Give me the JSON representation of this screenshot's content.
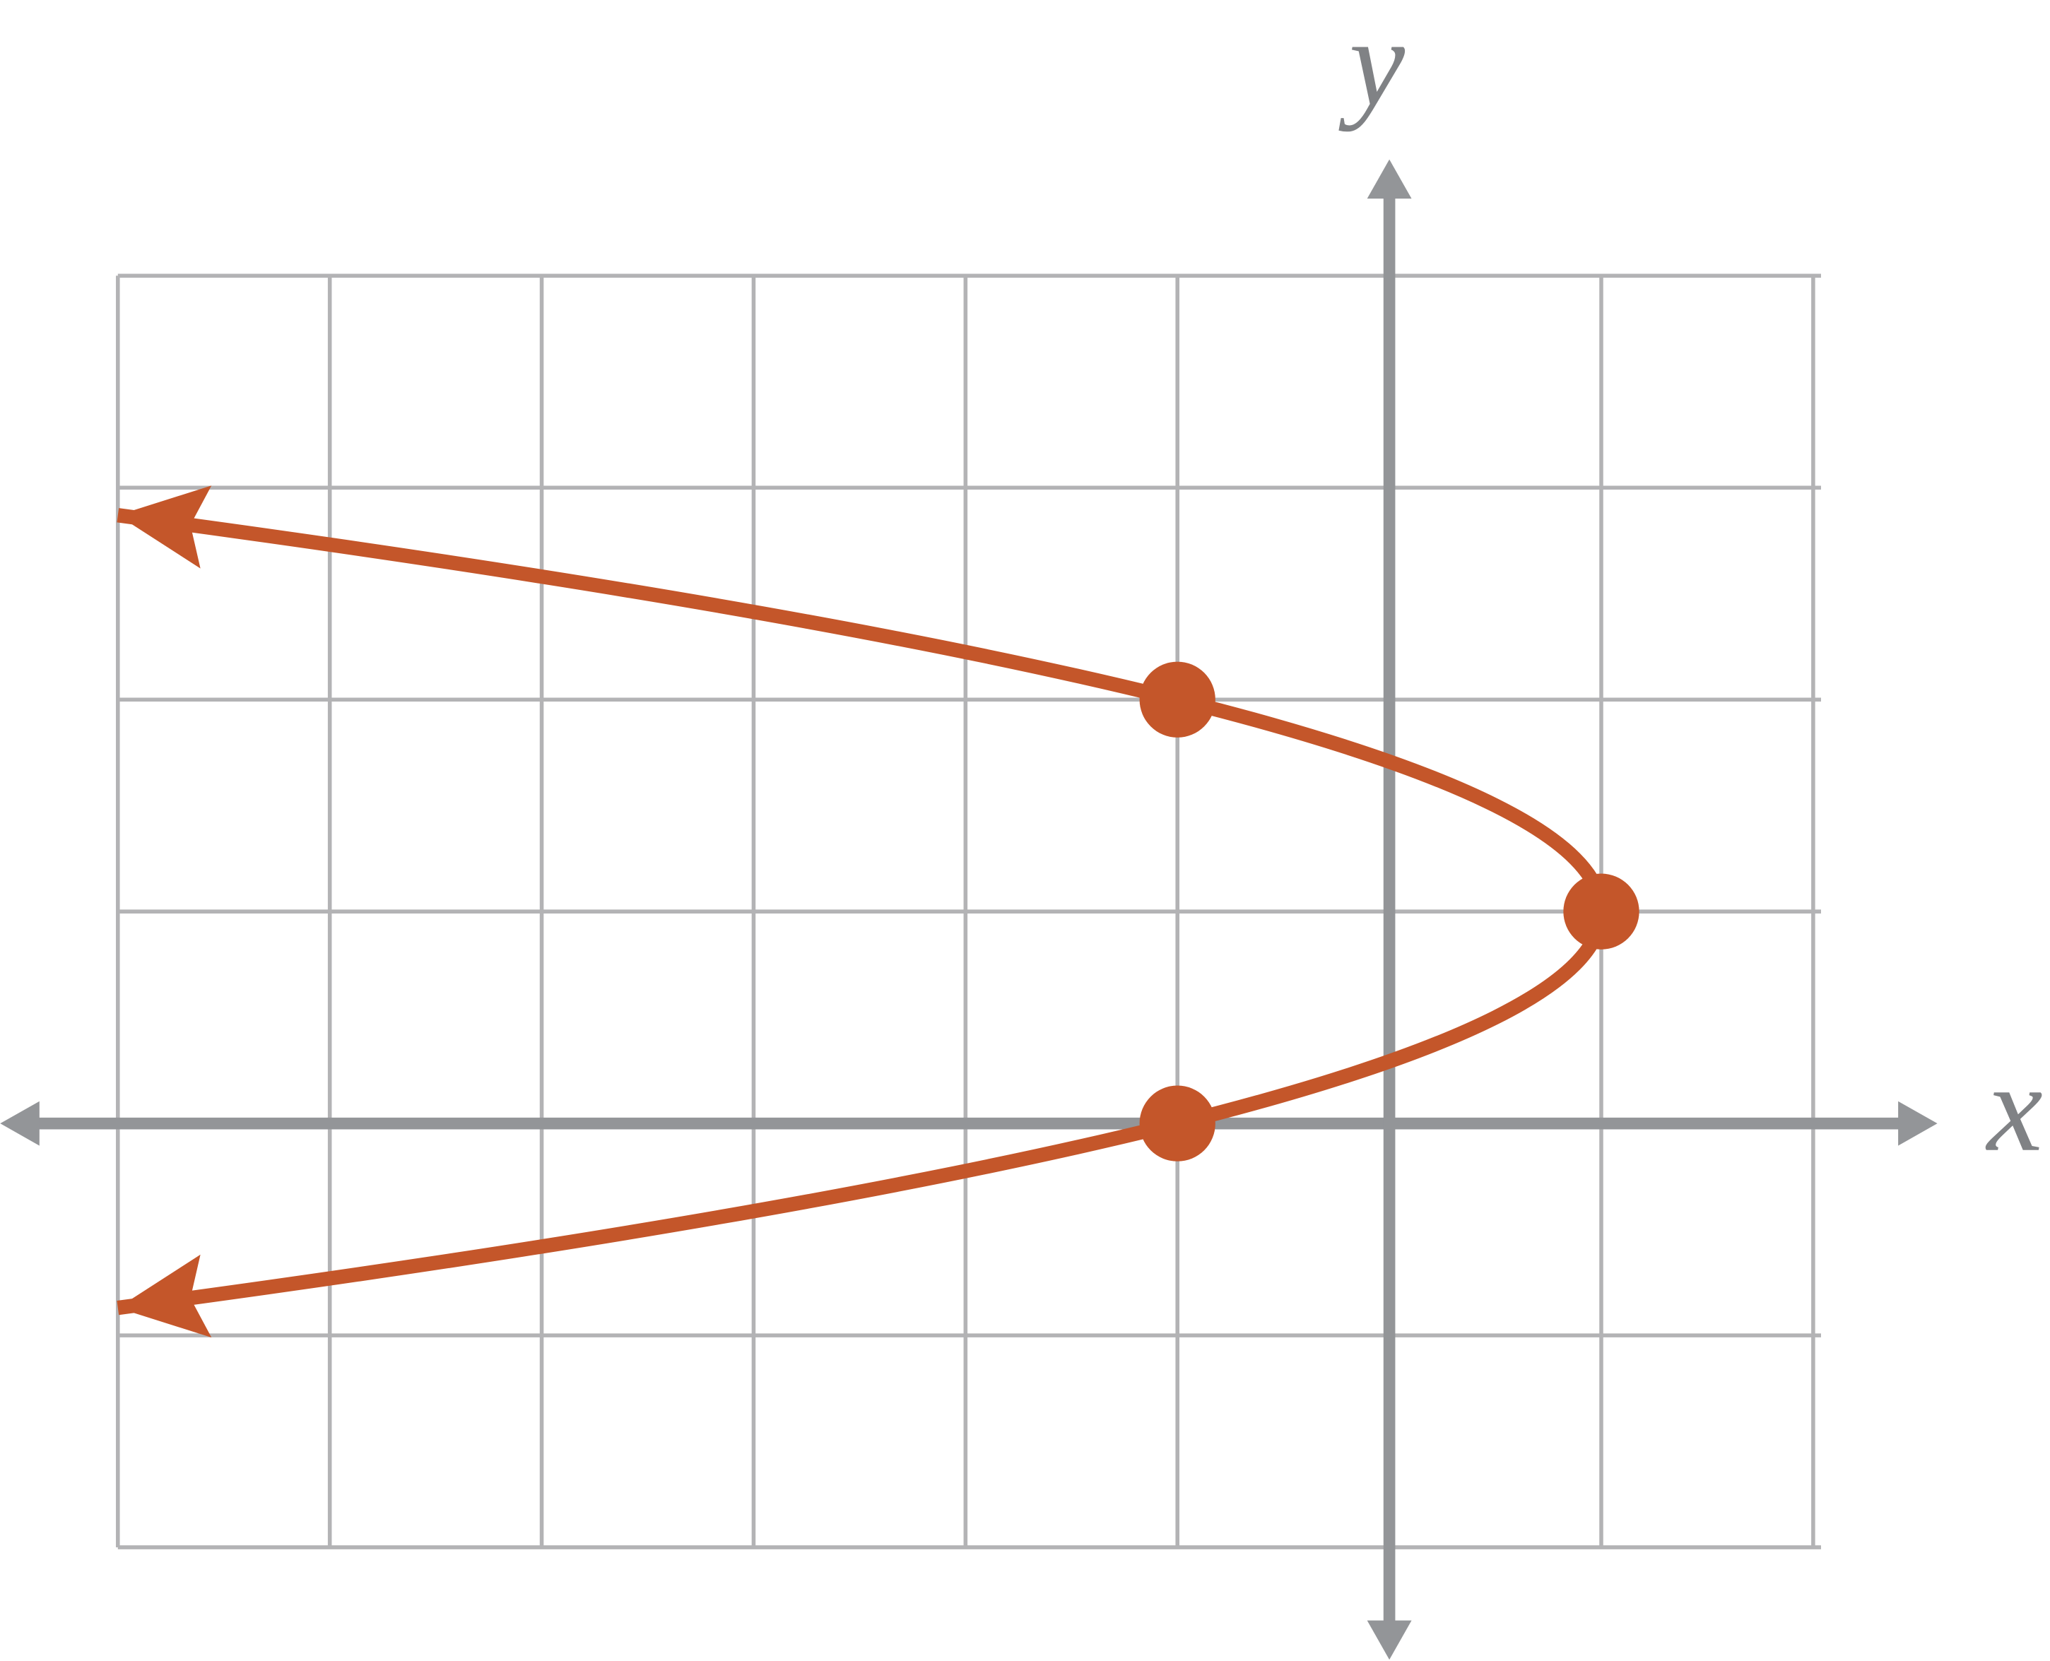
{
  "chart_data": {
    "type": "parabola",
    "x_label": "x",
    "y_label": "y",
    "xlim": [
      -6,
      2
    ],
    "ylim": [
      -2,
      4
    ],
    "xticks": [
      -6,
      -5,
      -4,
      -3,
      -2,
      -1,
      0,
      1,
      2
    ],
    "yticks": [
      -2,
      -1,
      0,
      1,
      2,
      3,
      4
    ],
    "grid": true,
    "grid_color": "#b3b3b5",
    "axis_color": "#939598",
    "series": [
      {
        "color": "#c4562a",
        "x": [
          -6,
          -1,
          1,
          -1,
          -6
        ],
        "y": [
          2.87,
          2,
          1,
          0,
          -0.87
        ],
        "points": [
          1,
          2,
          3
        ]
      }
    ]
  }
}
